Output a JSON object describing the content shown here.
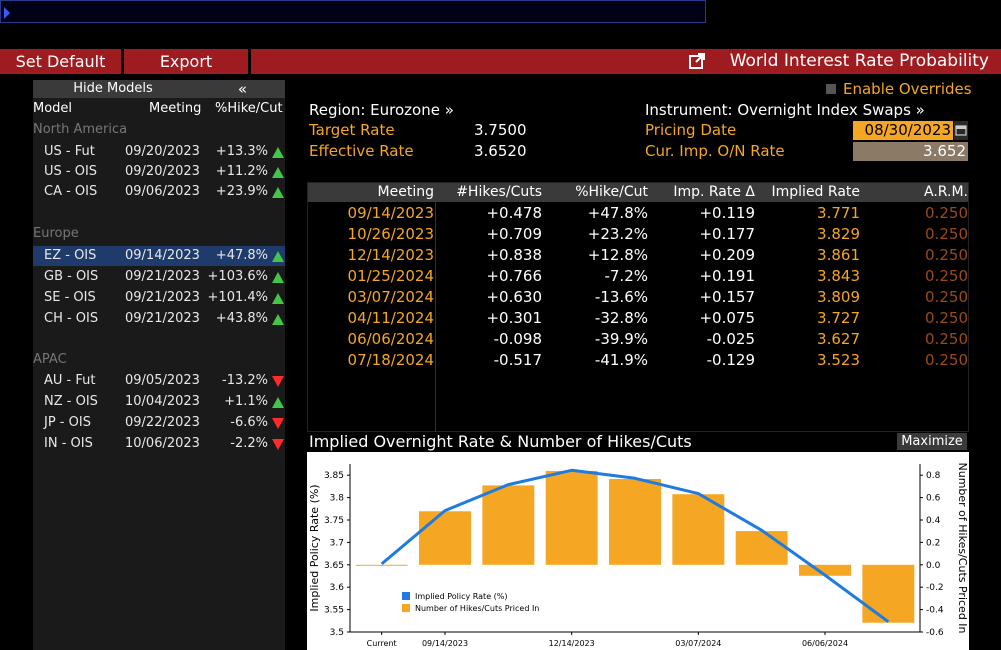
{
  "toolbar": {
    "set_default": "Set Default",
    "export": "Export",
    "title": "World Interest Rate Probability"
  },
  "models_panel": {
    "hide_models": "Hide Models",
    "collapse_glyph": "«",
    "col_model": "Model",
    "col_meeting": "Meeting",
    "col_pct": "%Hike/Cut",
    "regions": [
      {
        "name": "North America",
        "rows": [
          {
            "model": "US - Fut",
            "meeting": "09/20/2023",
            "pct": "+13.3%",
            "dir": "up"
          },
          {
            "model": "US - OIS",
            "meeting": "09/20/2023",
            "pct": "+11.2%",
            "dir": "up"
          },
          {
            "model": "CA - OIS",
            "meeting": "09/06/2023",
            "pct": "+23.9%",
            "dir": "up"
          }
        ]
      },
      {
        "name": "Europe",
        "rows": [
          {
            "model": "EZ - OIS",
            "meeting": "09/14/2023",
            "pct": "+47.8%",
            "dir": "up",
            "selected": true
          },
          {
            "model": "GB - OIS",
            "meeting": "09/21/2023",
            "pct": "+103.6%",
            "dir": "up"
          },
          {
            "model": "SE - OIS",
            "meeting": "09/21/2023",
            "pct": "+101.4%",
            "dir": "up"
          },
          {
            "model": "CH - OIS",
            "meeting": "09/21/2023",
            "pct": "+43.8%",
            "dir": "up"
          }
        ]
      },
      {
        "name": "APAC",
        "rows": [
          {
            "model": "AU - Fut",
            "meeting": "09/05/2023",
            "pct": "-13.2%",
            "dir": "down"
          },
          {
            "model": "NZ - OIS",
            "meeting": "10/04/2023",
            "pct": "+1.1%",
            "dir": "up"
          },
          {
            "model": "JP - OIS",
            "meeting": "09/22/2023",
            "pct": "-6.6%",
            "dir": "down"
          },
          {
            "model": "IN - OIS",
            "meeting": "10/06/2023",
            "pct": "-2.2%",
            "dir": "down"
          }
        ]
      }
    ]
  },
  "info": {
    "enable_overrides": "Enable Overrides",
    "region": "Region: Eurozone »",
    "instrument": "Instrument: Overnight Index Swaps »",
    "target_rate_label": "Target Rate",
    "target_rate": "3.7500",
    "effective_rate_label": "Effective Rate",
    "effective_rate": "3.6520",
    "pricing_date_label": "Pricing Date",
    "pricing_date": "08/30/2023",
    "cur_imp_label": "Cur. Imp. O/N Rate",
    "cur_imp": "3.652"
  },
  "table": {
    "headers": [
      "Meeting",
      "#Hikes/Cuts",
      "%Hike/Cut",
      "Imp. Rate Δ",
      "Implied Rate",
      "A.R.M."
    ],
    "rows": [
      [
        "09/14/2023",
        "+0.478",
        "+47.8%",
        "+0.119",
        "3.771",
        "0.250"
      ],
      [
        "10/26/2023",
        "+0.709",
        "+23.2%",
        "+0.177",
        "3.829",
        "0.250"
      ],
      [
        "12/14/2023",
        "+0.838",
        "+12.8%",
        "+0.209",
        "3.861",
        "0.250"
      ],
      [
        "01/25/2024",
        "+0.766",
        "-7.2%",
        "+0.191",
        "3.843",
        "0.250"
      ],
      [
        "03/07/2024",
        "+0.630",
        "-13.6%",
        "+0.157",
        "3.809",
        "0.250"
      ],
      [
        "04/11/2024",
        "+0.301",
        "-32.8%",
        "+0.075",
        "3.727",
        "0.250"
      ],
      [
        "06/06/2024",
        "-0.098",
        "-39.9%",
        "-0.025",
        "3.627",
        "0.250"
      ],
      [
        "07/18/2024",
        "-0.517",
        "-41.9%",
        "-0.129",
        "3.523",
        "0.250"
      ]
    ]
  },
  "chart_section": {
    "title": "Implied Overnight Rate & Number of Hikes/Cuts",
    "maximize": "Maximize"
  },
  "colors": {
    "accent_orange": "#f5a623",
    "toolbar_red": "#9e1b20",
    "line_blue": "#1f7be0",
    "up_green": "#43c548",
    "down_red": "#ff2a2a"
  },
  "chart_data": {
    "type": "bar",
    "categories": [
      "Current",
      "09/14/2023",
      "10/26/2023",
      "12/14/2023",
      "01/25/2024",
      "03/07/2024",
      "04/11/2024",
      "06/06/2024",
      "07/18/2024"
    ],
    "x_tick_labels": [
      "Current",
      "09/14/2023",
      "12/14/2023",
      "03/07/2024",
      "06/06/2024"
    ],
    "series": [
      {
        "name": "Implied Policy Rate (%)",
        "type": "line",
        "axis": "left",
        "values": [
          3.652,
          3.771,
          3.829,
          3.861,
          3.843,
          3.809,
          3.727,
          3.627,
          3.523
        ]
      },
      {
        "name": "Number of Hikes/Cuts Priced In",
        "type": "bar",
        "axis": "right",
        "values": [
          0.0,
          0.478,
          0.709,
          0.838,
          0.766,
          0.63,
          0.301,
          -0.098,
          -0.517
        ]
      }
    ],
    "ylabel": "Implied Policy Rate (%)",
    "ylabel_right": "Number of Hikes/Cuts Priced In",
    "ylim": [
      3.5,
      3.875
    ],
    "yticks": [
      "3.5",
      "3.55",
      "3.6",
      "3.65",
      "3.7",
      "3.75",
      "3.8",
      "3.85"
    ],
    "ylim_right": [
      -0.6,
      0.9
    ],
    "yticks_right": [
      "-0.6",
      "-0.4",
      "-0.2",
      "0.0",
      "0.2",
      "0.4",
      "0.6",
      "0.8"
    ],
    "legend": "bottom-left",
    "grid": false
  }
}
